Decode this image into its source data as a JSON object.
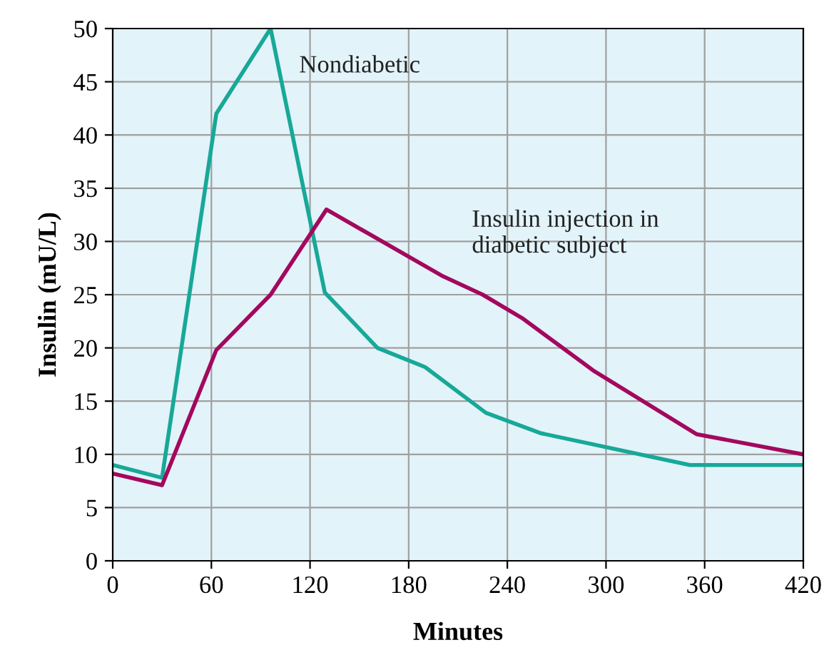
{
  "chart_data": {
    "type": "line",
    "xlabel": "Minutes",
    "ylabel": "Insulin (mU/L)",
    "xlim": [
      0,
      420
    ],
    "xticks": [
      0,
      60,
      120,
      180,
      240,
      300,
      360,
      420
    ],
    "ylim": [
      0,
      50
    ],
    "yticks": [
      0,
      5,
      10,
      15,
      20,
      25,
      30,
      35,
      40,
      45,
      50
    ],
    "grid": true,
    "legend": false,
    "marker": "none",
    "line_style": "solid",
    "series": [
      {
        "name": "Nondiabetic",
        "color": "#17a898",
        "x": [
          0,
          30,
          63,
          96,
          129,
          161,
          190,
          227,
          260,
          351,
          420
        ],
        "values": [
          9,
          7.8,
          42,
          50,
          25.2,
          20,
          18.2,
          13.9,
          12,
          9,
          9
        ]
      },
      {
        "name": "Insulin injection in\ndiabetic subject",
        "color": "#a3085e",
        "x": [
          0,
          30,
          63,
          96,
          130,
          200,
          225,
          249,
          293,
          355,
          420
        ],
        "values": [
          8.2,
          7.1,
          19.8,
          25,
          33,
          26.8,
          25,
          22.8,
          17.8,
          11.9,
          10
        ]
      }
    ]
  }
}
